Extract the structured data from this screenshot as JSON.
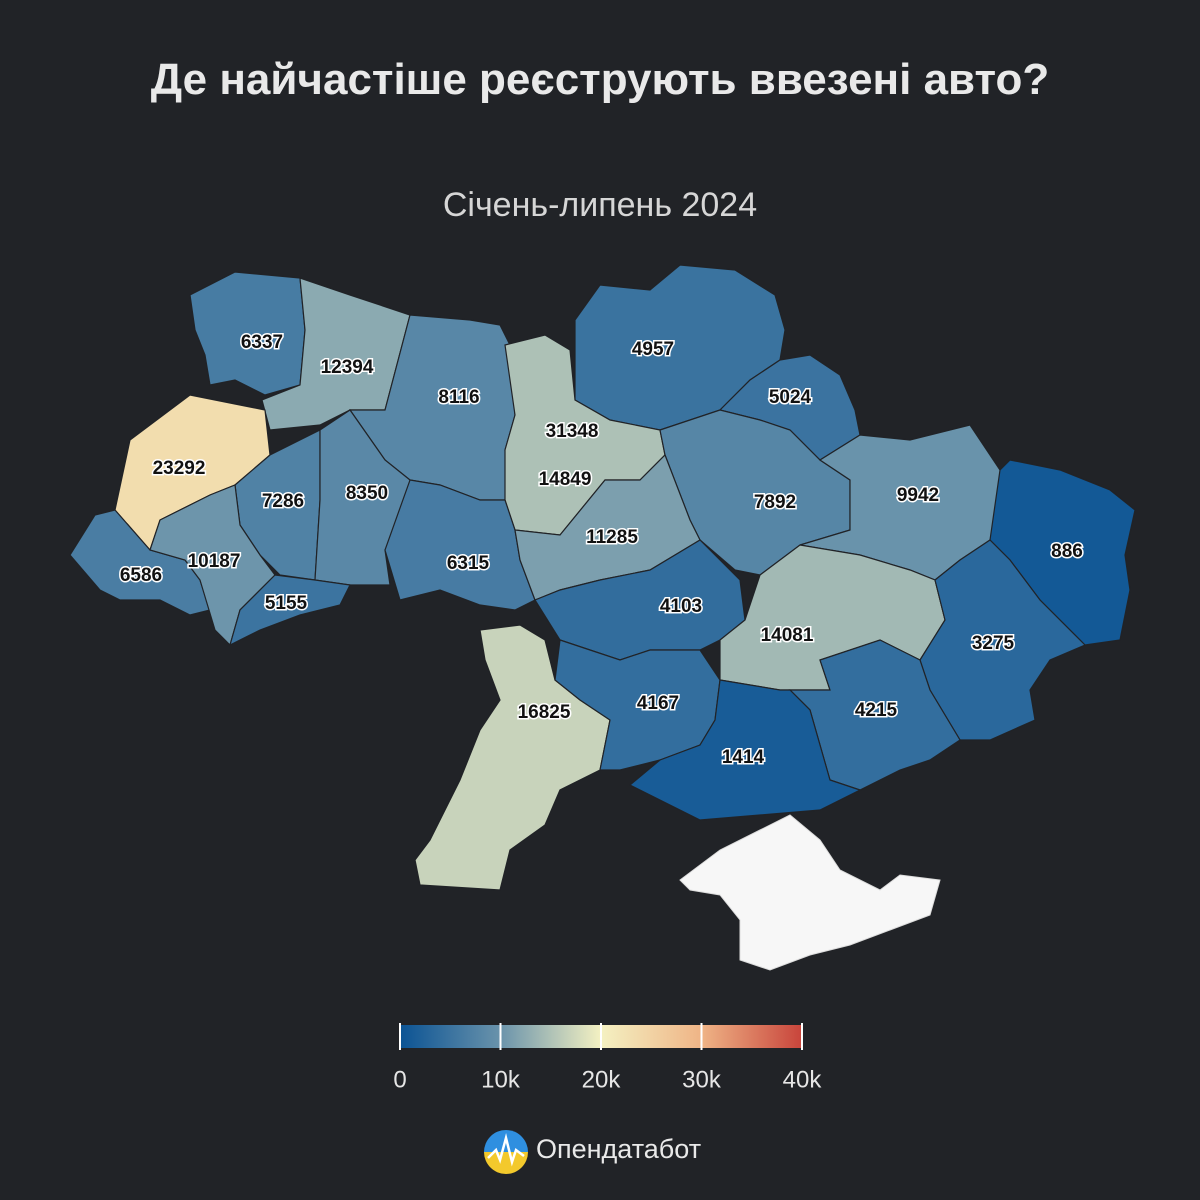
{
  "chart_data": {
    "type": "choropleth",
    "title": "Де найчастіше реєструють ввезені авто?",
    "subtitle": "Січень-липень 2024",
    "values": [
      6337,
      12394,
      8116,
      4957,
      5024,
      31348,
      23292,
      7286,
      8350,
      14849,
      7892,
      9942,
      886,
      6586,
      10187,
      5155,
      6315,
      11285,
      4103,
      14081,
      3275,
      16825,
      4167,
      4215,
      1414
    ],
    "clim": [
      0,
      40000
    ],
    "cticks": [
      0,
      {
        "value": 10000,
        "label": "10k"
      },
      {
        "value": 20000,
        "label": "20k"
      },
      {
        "value": 30000,
        "label": "30k"
      },
      {
        "value": 40000,
        "label": "40k"
      }
    ],
    "colorscale": [
      "#0b5394",
      "#6a93ab",
      "#f4f1c2",
      "#efb486",
      "#c8443b"
    ]
  },
  "brand": "Опендатабот"
}
